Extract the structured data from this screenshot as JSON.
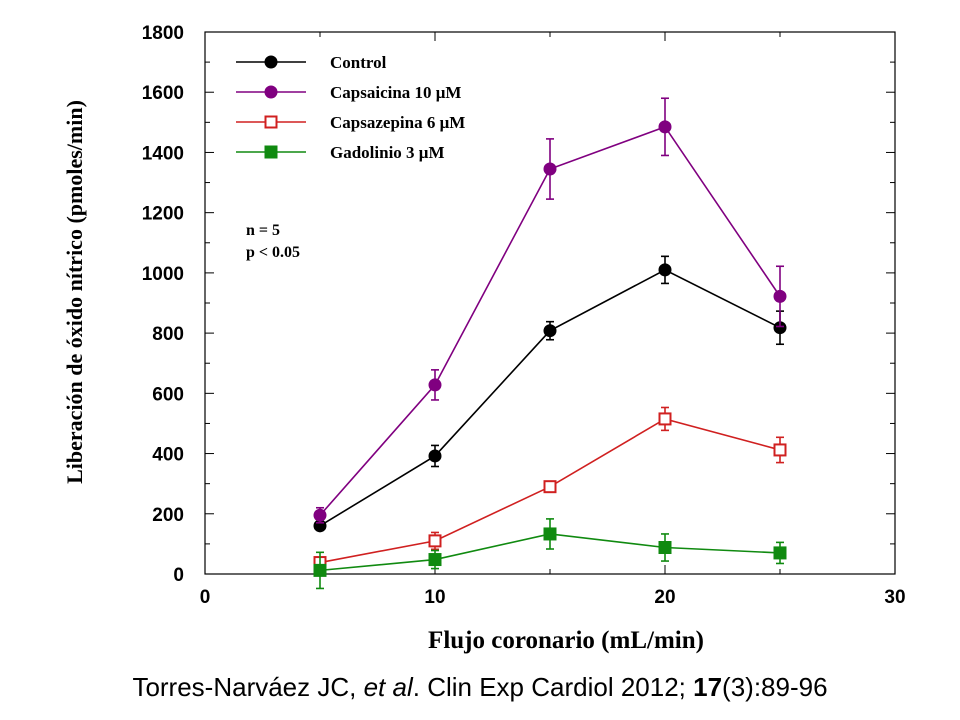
{
  "chart_data": {
    "type": "line",
    "title": "",
    "xlabel": "Flujo coronario (mL/min)",
    "ylabel": "Liberación de óxido nítrico (pmoles/min)",
    "xlim": [
      0,
      30
    ],
    "ylim": [
      0,
      1800
    ],
    "xticks": [
      0,
      10,
      20,
      30
    ],
    "yticks": [
      0,
      200,
      400,
      600,
      800,
      1000,
      1200,
      1400,
      1600,
      1800
    ],
    "grid": false,
    "legend_position": "top-left",
    "x": [
      5,
      10,
      15,
      20,
      25
    ],
    "series": [
      {
        "name": "Control",
        "marker": "filled-circle",
        "color": "#000000",
        "values": [
          160,
          392,
          808,
          1010,
          818
        ],
        "errors": [
          12,
          35,
          30,
          45,
          55
        ]
      },
      {
        "name": "Capsaicina 10 μM",
        "marker": "filled-circle",
        "color": "#800080",
        "values": [
          195,
          628,
          1345,
          1485,
          922
        ],
        "errors": [
          25,
          50,
          100,
          95,
          100
        ]
      },
      {
        "name": "Capsazepina 6 μM",
        "marker": "open-square",
        "color": "#d02020",
        "values": [
          38,
          110,
          290,
          515,
          412
        ],
        "errors": [
          15,
          28,
          0,
          38,
          42
        ]
      },
      {
        "name": "Gadolinio 3 μM",
        "marker": "filled-square",
        "color": "#108a10",
        "values": [
          12,
          48,
          133,
          88,
          70
        ],
        "errors": [
          60,
          30,
          50,
          45,
          35
        ]
      }
    ],
    "annotations": [
      "n = 5",
      "p < 0.05"
    ]
  },
  "citation": {
    "authors": "Torres-Narváez JC, ",
    "etal": "et al",
    "journal": ". Clin Exp Cardiol 2012; ",
    "volume": "17",
    "pages": "(3):89-96"
  }
}
